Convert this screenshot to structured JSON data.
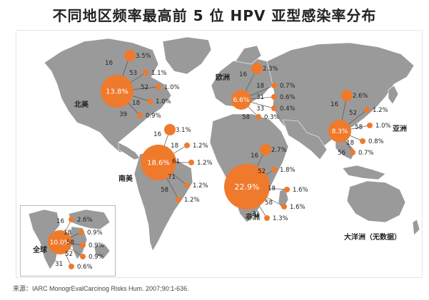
{
  "title": "不同地区频率最高前 5 位 HPV 亚型感染率分布",
  "source": "来源：IARC MonogrEvalCarcinog Risks Hum. 2007;90:1-636.",
  "colors": {
    "land": "#9a9a9a",
    "bubble": "#ef7a2c",
    "bubble_text": "#ffffff",
    "line": "#555555"
  },
  "regions": [
    {
      "name": "北美",
      "main_label": "13.8%",
      "subtypes": [
        {
          "type": "16",
          "rate": "3.5%"
        },
        {
          "type": "53",
          "rate": "1.1%"
        },
        {
          "type": "52",
          "rate": "1.0%"
        },
        {
          "type": "18",
          "rate": "1.0%"
        },
        {
          "type": "39",
          "rate": "0.9%"
        }
      ]
    },
    {
      "name": "欧洲",
      "main_label": "6.6%",
      "subtypes": [
        {
          "type": "16",
          "rate": "2.3%"
        },
        {
          "type": "18",
          "rate": "0.7%"
        },
        {
          "type": "31",
          "rate": "0.6%"
        },
        {
          "type": "33",
          "rate": "0.4%"
        },
        {
          "type": "58",
          "rate": "0.3%"
        }
      ]
    },
    {
      "name": "亚洲",
      "main_label": "8.3%",
      "subtypes": [
        {
          "type": "16",
          "rate": "2.6%"
        },
        {
          "type": "52",
          "rate": "1.2%"
        },
        {
          "type": "58",
          "rate": "1.0%"
        },
        {
          "type": "18",
          "rate": "0.8%"
        },
        {
          "type": "56",
          "rate": "0.7%"
        }
      ]
    },
    {
      "name": "南美",
      "main_label": "18.6%",
      "subtypes": [
        {
          "type": "16",
          "rate": "3.1%"
        },
        {
          "type": "18",
          "rate": "1.2%"
        },
        {
          "type": "61",
          "rate": "1.2%"
        },
        {
          "type": "71",
          "rate": "1.2%"
        },
        {
          "type": "58",
          "rate": "1.2%"
        }
      ]
    },
    {
      "name": "非洲",
      "main_label": "22.9%",
      "subtypes": [
        {
          "type": "16",
          "rate": "2.7%"
        },
        {
          "type": "52",
          "rate": "1.8%"
        },
        {
          "type": "18",
          "rate": "1.6%"
        },
        {
          "type": "58",
          "rate": "1.6%"
        },
        {
          "type": "31",
          "rate": "1.3%"
        }
      ]
    },
    {
      "name": "全球",
      "main_label": "10.0%",
      "subtypes": [
        {
          "type": "16",
          "rate": "2.6%"
        },
        {
          "type": "18",
          "rate": "0.9%"
        },
        {
          "type": "58",
          "rate": "0.9%"
        },
        {
          "type": "52",
          "rate": "0.9%"
        },
        {
          "type": "31",
          "rate": "0.6%"
        }
      ]
    }
  ],
  "oceania": "大洋洲（无数据）"
}
